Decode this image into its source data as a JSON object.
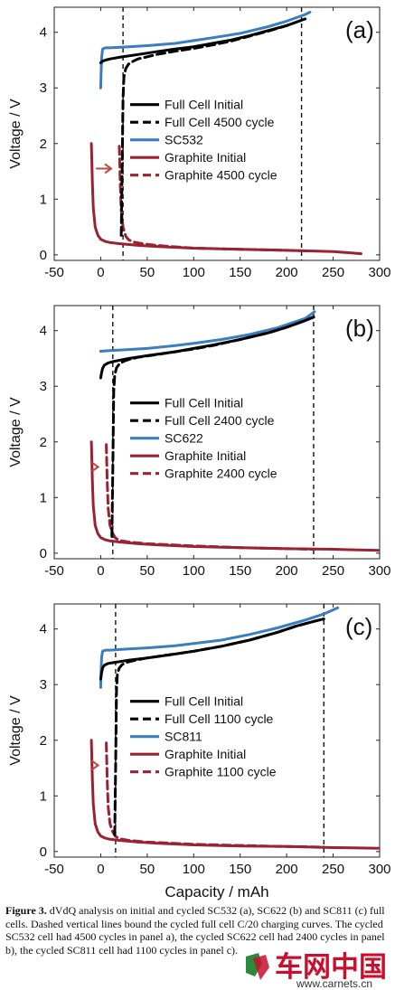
{
  "figure": {
    "caption_label": "Figure 3.",
    "caption_text": " dVdQ analysis on initial and cycled SC532 (a), SC622 (b) and SC811 (c) full cells. Dashed vertical lines bound the cycled full cell C/20 charging curves. The cycled SC532 cell had 4500 cycles in panel a), the cycled SC622 cell had 2400 cycles in panel b), the cycled SC811 cell had 1100 cycles in panel c)."
  },
  "watermark": {
    "text": "车网中国",
    "url": "www.carnets.cn"
  },
  "colors": {
    "full_cell": "#000000",
    "cathode": "#3a7ec0",
    "graphite": "#9b2233",
    "arrow": "#b84a4a"
  },
  "chart_data": [
    {
      "type": "line",
      "panel_label": "(a)",
      "xlabel": "",
      "ylabel": "Voltage / V",
      "xlim": [
        -50,
        300
      ],
      "ylim": [
        -0.1,
        4.45
      ],
      "xticks": [
        -50,
        0,
        50,
        100,
        150,
        200,
        250,
        300
      ],
      "yticks": [
        0,
        1,
        2,
        3,
        4
      ],
      "grid": false,
      "legend_position": "center-left",
      "vlines": [
        24,
        216
      ],
      "series": [
        {
          "name": "Full Cell Initial",
          "color": "#000000",
          "dash": false,
          "x": [
            0,
            2,
            5,
            10,
            20,
            40,
            60,
            80,
            100,
            120,
            140,
            160,
            180,
            200,
            210,
            220
          ],
          "y": [
            3.45,
            3.48,
            3.5,
            3.52,
            3.55,
            3.6,
            3.65,
            3.7,
            3.74,
            3.8,
            3.86,
            3.94,
            4.03,
            4.12,
            4.18,
            4.24
          ]
        },
        {
          "name": "Full Cell 4500 cycle",
          "color": "#000000",
          "dash": true,
          "x": [
            22,
            23,
            24,
            25,
            27,
            30,
            35,
            40,
            50,
            60,
            80,
            100,
            120,
            140,
            160,
            180,
            200,
            210,
            216
          ],
          "y": [
            0.35,
            1.5,
            2.8,
            3.2,
            3.35,
            3.43,
            3.48,
            3.52,
            3.56,
            3.6,
            3.66,
            3.71,
            3.77,
            3.84,
            3.93,
            4.02,
            4.12,
            4.18,
            4.22
          ]
        },
        {
          "name": "SC532",
          "color": "#3a7ec0",
          "dash": false,
          "x": [
            0,
            0.5,
            1,
            2,
            5,
            10,
            30,
            50,
            80,
            100,
            120,
            150,
            180,
            200,
            220,
            225
          ],
          "y": [
            3.0,
            3.3,
            3.55,
            3.7,
            3.72,
            3.72,
            3.74,
            3.76,
            3.8,
            3.85,
            3.9,
            3.98,
            4.1,
            4.2,
            4.32,
            4.36
          ]
        },
        {
          "name": "Graphite Initial",
          "color": "#9b2233",
          "dash": false,
          "x": [
            -10,
            -9,
            -8,
            -6,
            -3,
            0,
            5,
            10,
            20,
            40,
            60,
            100,
            150,
            200,
            250,
            280
          ],
          "y": [
            2.0,
            1.3,
            0.85,
            0.5,
            0.35,
            0.28,
            0.24,
            0.22,
            0.2,
            0.17,
            0.15,
            0.12,
            0.1,
            0.08,
            0.06,
            0.02
          ]
        },
        {
          "name": "Graphite 4500 cycle",
          "color": "#9b2233",
          "dash": true,
          "x": [
            20,
            21,
            22,
            24,
            27,
            30,
            35,
            45,
            60,
            100,
            150,
            200,
            220
          ],
          "y": [
            1.95,
            1.3,
            0.8,
            0.5,
            0.33,
            0.27,
            0.23,
            0.2,
            0.17,
            0.12,
            0.1,
            0.08,
            0.07
          ]
        }
      ]
    },
    {
      "type": "line",
      "panel_label": "(b)",
      "xlabel": "",
      "ylabel": "Voltage / V",
      "xlim": [
        -50,
        300
      ],
      "ylim": [
        -0.1,
        4.45
      ],
      "xticks": [
        -50,
        0,
        50,
        100,
        150,
        200,
        250,
        300
      ],
      "yticks": [
        0,
        1,
        2,
        3,
        4
      ],
      "grid": false,
      "legend_position": "center-left",
      "vlines": [
        13,
        229
      ],
      "series": [
        {
          "name": "Full Cell Initial",
          "color": "#000000",
          "dash": false,
          "x": [
            0,
            1,
            2,
            4,
            8,
            15,
            30,
            50,
            80,
            100,
            120,
            150,
            180,
            200,
            220,
            229
          ],
          "y": [
            3.15,
            3.25,
            3.32,
            3.38,
            3.42,
            3.45,
            3.5,
            3.55,
            3.62,
            3.68,
            3.74,
            3.84,
            3.96,
            4.06,
            4.18,
            4.25
          ]
        },
        {
          "name": "Full Cell 2400 cycle",
          "color": "#000000",
          "dash": true,
          "x": [
            12,
            13,
            14,
            15,
            17,
            20,
            25,
            30,
            40,
            60,
            80,
            100,
            120,
            150,
            180,
            200,
            220,
            229
          ],
          "y": [
            0.3,
            1.5,
            2.9,
            3.2,
            3.33,
            3.4,
            3.45,
            3.48,
            3.52,
            3.57,
            3.62,
            3.67,
            3.73,
            3.84,
            3.96,
            4.06,
            4.18,
            4.24
          ]
        },
        {
          "name": "SC622",
          "color": "#3a7ec0",
          "dash": false,
          "x": [
            0,
            10,
            30,
            50,
            80,
            100,
            130,
            160,
            190,
            220,
            230
          ],
          "y": [
            3.63,
            3.64,
            3.66,
            3.68,
            3.73,
            3.77,
            3.84,
            3.93,
            4.05,
            4.22,
            4.34
          ]
        },
        {
          "name": "Graphite Initial",
          "color": "#9b2233",
          "dash": false,
          "x": [
            -10,
            -9,
            -8,
            -6,
            -3,
            0,
            5,
            10,
            20,
            40,
            60,
            100,
            150,
            200,
            250,
            300
          ],
          "y": [
            2.0,
            1.3,
            0.85,
            0.5,
            0.35,
            0.28,
            0.24,
            0.22,
            0.2,
            0.17,
            0.15,
            0.12,
            0.1,
            0.08,
            0.07,
            0.05
          ]
        },
        {
          "name": "Graphite 2400 cycle",
          "color": "#9b2233",
          "dash": true,
          "x": [
            6,
            7,
            8,
            10,
            13,
            16,
            20,
            30,
            50,
            100,
            150,
            200,
            230
          ],
          "y": [
            1.95,
            1.3,
            0.8,
            0.5,
            0.35,
            0.27,
            0.23,
            0.2,
            0.17,
            0.13,
            0.1,
            0.08,
            0.07
          ]
        }
      ]
    },
    {
      "type": "line",
      "panel_label": "(c)",
      "xlabel": "Capacity / mAh",
      "ylabel": "Voltage / V",
      "xlim": [
        -50,
        300
      ],
      "ylim": [
        -0.1,
        4.45
      ],
      "xticks": [
        -50,
        0,
        50,
        100,
        150,
        200,
        250,
        300
      ],
      "yticks": [
        0,
        1,
        2,
        3,
        4
      ],
      "grid": false,
      "legend_position": "center-left",
      "vlines": [
        16,
        240
      ],
      "series": [
        {
          "name": "Full Cell Initial",
          "color": "#000000",
          "dash": false,
          "x": [
            0,
            1,
            2,
            4,
            8,
            15,
            30,
            50,
            80,
            100,
            130,
            160,
            190,
            210,
            230,
            240
          ],
          "y": [
            3.1,
            3.22,
            3.3,
            3.35,
            3.38,
            3.4,
            3.44,
            3.48,
            3.55,
            3.6,
            3.69,
            3.8,
            3.94,
            4.05,
            4.14,
            4.18
          ]
        },
        {
          "name": "Full Cell 1100 cycle",
          "color": "#000000",
          "dash": true,
          "x": [
            15,
            16,
            17,
            18,
            20,
            23,
            28,
            35,
            50,
            80,
            100,
            130,
            160,
            190,
            210,
            230,
            240
          ],
          "y": [
            0.3,
            1.5,
            2.9,
            3.2,
            3.3,
            3.36,
            3.4,
            3.43,
            3.48,
            3.55,
            3.6,
            3.69,
            3.8,
            3.94,
            4.05,
            4.14,
            4.18
          ]
        },
        {
          "name": "SC811",
          "color": "#3a7ec0",
          "dash": false,
          "x": [
            0,
            0.5,
            1,
            2,
            5,
            10,
            30,
            50,
            80,
            100,
            130,
            160,
            190,
            220,
            240,
            255
          ],
          "y": [
            2.95,
            3.3,
            3.5,
            3.6,
            3.62,
            3.62,
            3.64,
            3.66,
            3.7,
            3.74,
            3.8,
            3.9,
            4.02,
            4.16,
            4.27,
            4.38
          ]
        },
        {
          "name": "Graphite Initial",
          "color": "#9b2233",
          "dash": false,
          "x": [
            -10,
            -9,
            -8,
            -6,
            -3,
            0,
            5,
            10,
            20,
            40,
            60,
            100,
            150,
            200,
            250,
            300
          ],
          "y": [
            2.0,
            1.3,
            0.85,
            0.5,
            0.35,
            0.28,
            0.24,
            0.22,
            0.2,
            0.17,
            0.15,
            0.12,
            0.1,
            0.09,
            0.07,
            0.06
          ]
        },
        {
          "name": "Graphite 1100 cycle",
          "color": "#9b2233",
          "dash": true,
          "x": [
            6,
            7,
            8,
            10,
            13,
            16,
            20,
            30,
            50,
            100,
            150,
            200,
            240
          ],
          "y": [
            1.95,
            1.3,
            0.8,
            0.5,
            0.35,
            0.27,
            0.23,
            0.2,
            0.17,
            0.13,
            0.11,
            0.09,
            0.08
          ]
        }
      ]
    }
  ]
}
